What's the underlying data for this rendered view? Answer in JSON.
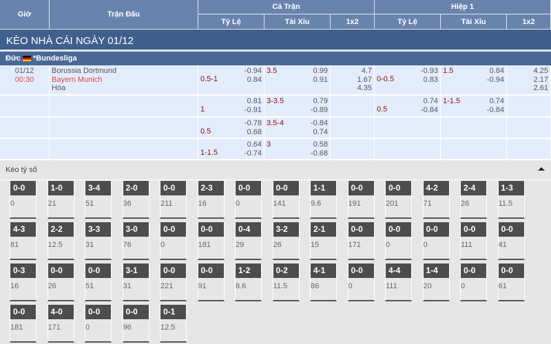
{
  "header": {
    "time": "Giờ",
    "match": "Trận Đấu",
    "full": "Cả Trận",
    "half": "Hiệp 1",
    "hdp": "Tỷ Lệ",
    "ou": "Tài Xỉu",
    "x12": "1x2"
  },
  "title": "KÈO NHÀ CÁI NGÀY 01/12",
  "league": {
    "country": "Đức",
    "name": "*Bundesliga",
    "flag": "germany-flag"
  },
  "match": {
    "date": "01/12",
    "time": "00:30",
    "home": "Borussia Dortmund",
    "away": "Bayern Munich",
    "draw": "Hòa"
  },
  "rows": [
    {
      "hdp": "0.5-1",
      "hdp_o": [
        "-0.94",
        "0.84"
      ],
      "ou": "3.5",
      "ou_o": [
        "0.99",
        "0.91"
      ],
      "x12": [
        "4.7",
        "1.67",
        "4.35"
      ],
      "h_hdp": "0-0.5",
      "h_hdp_o": [
        "-0.93",
        "0.83"
      ],
      "h_ou": "1.5",
      "h_ou_o": [
        "0.84",
        "-0.94"
      ],
      "h_x12": [
        "4.25",
        "2.17",
        "2.61"
      ]
    },
    {
      "hdp": "1",
      "hdp_o": [
        "0.81",
        "-0.91"
      ],
      "ou": "3-3.5",
      "ou_o": [
        "0.79",
        "-0.89"
      ],
      "h_hdp": "0.5",
      "h_hdp_o": [
        "0.74",
        "-0.84"
      ],
      "h_ou": "1-1.5",
      "h_ou_o": [
        "0.74",
        "-0.84"
      ]
    },
    {
      "hdp": "0.5",
      "hdp_o": [
        "-0.78",
        "0.68"
      ],
      "ou": "3.5-4",
      "ou_o": [
        "-0.84",
        "0.74"
      ]
    },
    {
      "hdp": "1-1.5",
      "hdp_o": [
        "0.64",
        "-0.74"
      ],
      "ou": "3",
      "ou_o": [
        "0.58",
        "-0.68"
      ]
    }
  ],
  "correct_score": {
    "label": "Kèo tỷ số",
    "toggle_icon": "caret-up-icon",
    "cards": [
      [
        "0-0",
        "0"
      ],
      [
        "1-0",
        "21"
      ],
      [
        "3-4",
        "51"
      ],
      [
        "2-0",
        "36"
      ],
      [
        "0-0",
        "211"
      ],
      [
        "2-3",
        "16"
      ],
      [
        "0-0",
        "0"
      ],
      [
        "0-0",
        "141"
      ],
      [
        "1-1",
        "9.6"
      ],
      [
        "0-0",
        "191"
      ],
      [
        "0-0",
        "201"
      ],
      [
        "4-2",
        "71"
      ],
      [
        "2-4",
        "26"
      ],
      [
        "1-3",
        "11.5"
      ],
      [
        "4-3",
        "81"
      ],
      [
        "2-2",
        "12.5"
      ],
      [
        "3-3",
        "31"
      ],
      [
        "3-0",
        "76"
      ],
      [
        "0-0",
        "0"
      ],
      [
        "0-0",
        "181"
      ],
      [
        "0-4",
        "29"
      ],
      [
        "3-2",
        "26"
      ],
      [
        "2-1",
        "15"
      ],
      [
        "0-0",
        "171"
      ],
      [
        "0-0",
        "0"
      ],
      [
        "0-0",
        "0"
      ],
      [
        "0-0",
        "111"
      ],
      [
        "0-0",
        "41"
      ],
      [
        "0-3",
        "16"
      ],
      [
        "0-0",
        "26"
      ],
      [
        "0-0",
        "51"
      ],
      [
        "3-1",
        "31"
      ],
      [
        "0-0",
        "221"
      ],
      [
        "0-0",
        "91"
      ],
      [
        "1-2",
        "8.6"
      ],
      [
        "0-2",
        "11.5"
      ],
      [
        "4-1",
        "86"
      ],
      [
        "0-0",
        "0"
      ],
      [
        "4-4",
        "111"
      ],
      [
        "1-4",
        "20"
      ],
      [
        "0-0",
        "0"
      ],
      [
        "0-0",
        "61"
      ],
      [
        "0-0",
        "181"
      ],
      [
        "4-0",
        "171"
      ],
      [
        "0-0",
        "0"
      ],
      [
        "0-0",
        "96"
      ],
      [
        "0-1",
        "12.5"
      ]
    ]
  }
}
